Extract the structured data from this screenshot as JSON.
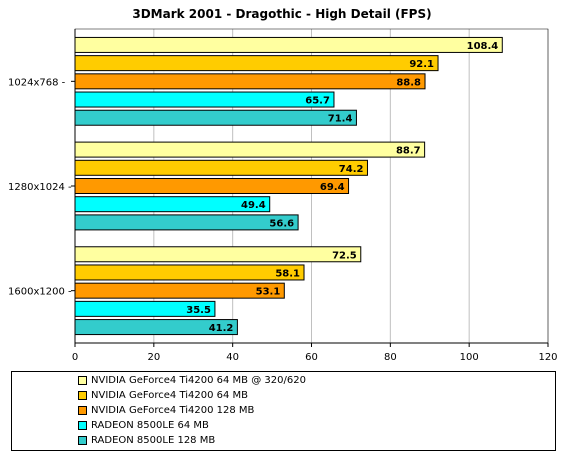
{
  "chart_data": {
    "type": "bar",
    "orientation": "horizontal",
    "title": "3DMark 2001 - Dragothic - High Detail  (FPS)",
    "categories": [
      "1024x768  -",
      "1280x1024 -",
      "1600x1200 -"
    ],
    "series": [
      {
        "name": "NVIDIA GeForce4 Ti4200 64 MB @ 320/620",
        "color": "#ffffa0",
        "values": [
          108.4,
          88.7,
          72.5
        ],
        "labels": [
          "108.4",
          "88.7",
          "72.5"
        ]
      },
      {
        "name": "NVIDIA GeForce4 Ti4200 64 MB",
        "color": "#ffcc00",
        "values": [
          92.1,
          74.2,
          58.1
        ],
        "labels": [
          "92.1",
          "74.2",
          "58.1"
        ]
      },
      {
        "name": "NVIDIA GeForce4 Ti4200 128 MB",
        "color": "#ff9900",
        "values": [
          88.8,
          69.4,
          53.1
        ],
        "labels": [
          "88.8",
          "69.4",
          "53.1"
        ]
      },
      {
        "name": "RADEON 8500LE 64 MB",
        "color": "#00ffff",
        "values": [
          65.7,
          49.4,
          35.5
        ],
        "labels": [
          "65.7",
          "49.4",
          "35.5"
        ]
      },
      {
        "name": "RADEON 8500LE 128 MB",
        "color": "#33cccc",
        "values": [
          71.4,
          56.6,
          41.2
        ],
        "labels": [
          "71.4",
          "56.6",
          "41.2"
        ]
      }
    ],
    "xlim": [
      0,
      120
    ],
    "xticks": [
      0,
      20,
      40,
      60,
      80,
      100,
      120
    ],
    "xtick_labels": [
      "0",
      "20",
      "40",
      "60",
      "80",
      "100",
      "120"
    ],
    "grid": true,
    "legend_position": "bottom",
    "plot_background": "#ffffff",
    "grid_color": "#c0c0c0"
  }
}
